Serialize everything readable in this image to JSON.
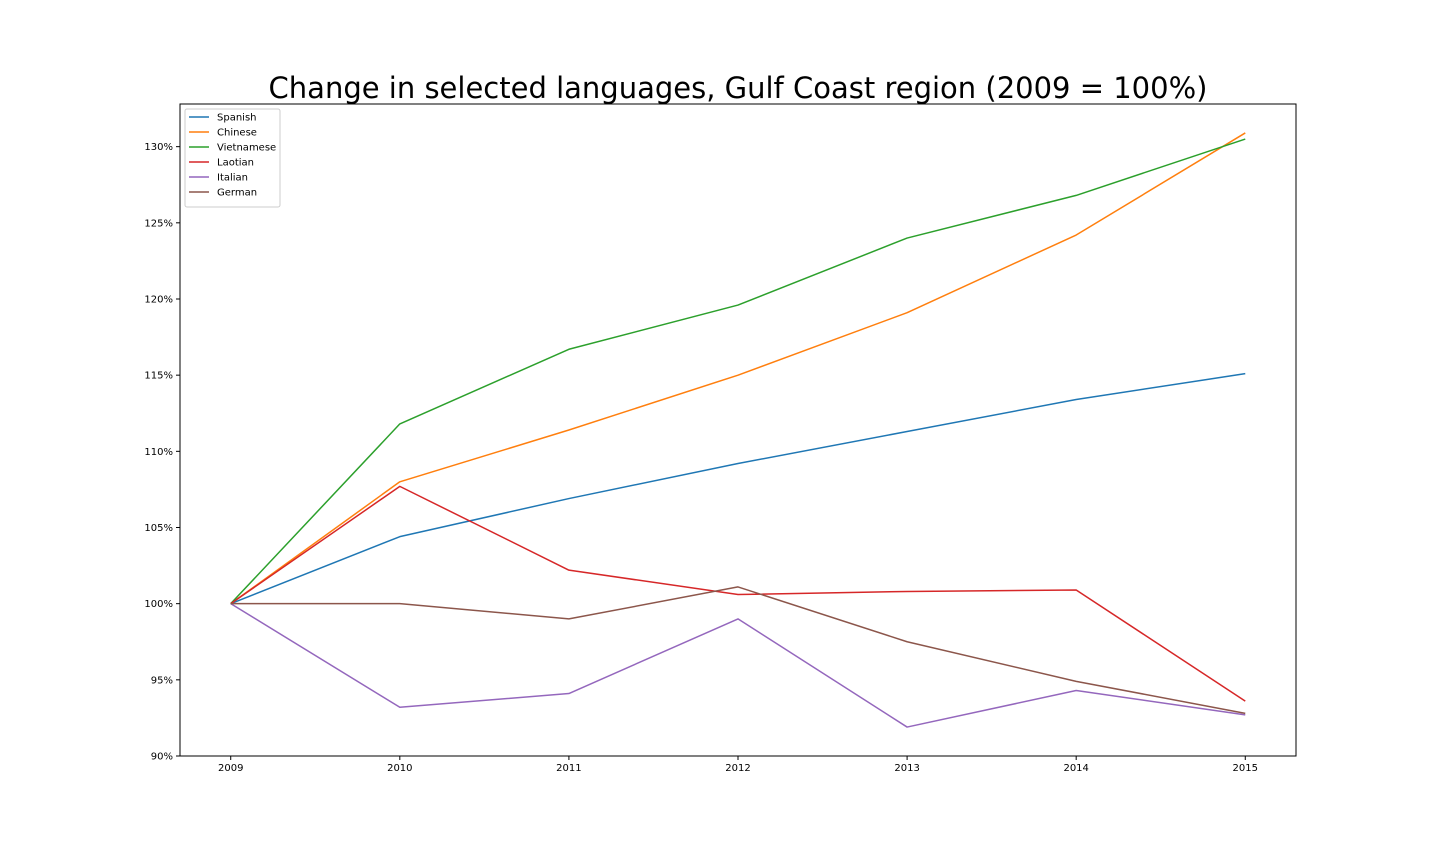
{
  "chart_data": {
    "type": "line",
    "title": "Change in selected languages, Gulf Coast region (2009 = 100%)",
    "xlabel": "",
    "ylabel": "",
    "x": [
      2009,
      2010,
      2011,
      2012,
      2013,
      2014,
      2015
    ],
    "x_tick_labels": [
      "2009",
      "2010",
      "2011",
      "2012",
      "2013",
      "2014",
      "2015"
    ],
    "y_ticks": [
      90,
      95,
      100,
      105,
      110,
      115,
      120,
      125,
      130
    ],
    "y_tick_labels": [
      "90%",
      "95%",
      "100%",
      "105%",
      "110%",
      "115%",
      "120%",
      "125%",
      "130%"
    ],
    "ylim": [
      90,
      132.8
    ],
    "xlim": [
      2008.7,
      2015.3
    ],
    "grid": false,
    "legend_position": "top-left",
    "series": [
      {
        "name": "Spanish",
        "color": "#1f77b4",
        "values": [
          100,
          104.4,
          106.9,
          109.2,
          111.3,
          113.4,
          115.1
        ]
      },
      {
        "name": "Chinese",
        "color": "#ff7f0e",
        "values": [
          100,
          108.0,
          111.4,
          115.0,
          119.1,
          124.2,
          130.9
        ]
      },
      {
        "name": "Vietnamese",
        "color": "#2ca02c",
        "values": [
          100,
          111.8,
          116.7,
          119.6,
          124.0,
          126.8,
          130.5
        ]
      },
      {
        "name": "Laotian",
        "color": "#d62728",
        "values": [
          100,
          107.7,
          102.2,
          100.6,
          100.8,
          100.9,
          93.6
        ]
      },
      {
        "name": "Italian",
        "color": "#9467bd",
        "values": [
          100,
          93.2,
          94.1,
          99.0,
          91.9,
          94.3,
          92.7
        ]
      },
      {
        "name": "German",
        "color": "#8c564b",
        "values": [
          100,
          100.0,
          99.0,
          101.1,
          97.5,
          94.9,
          92.8
        ]
      }
    ]
  }
}
